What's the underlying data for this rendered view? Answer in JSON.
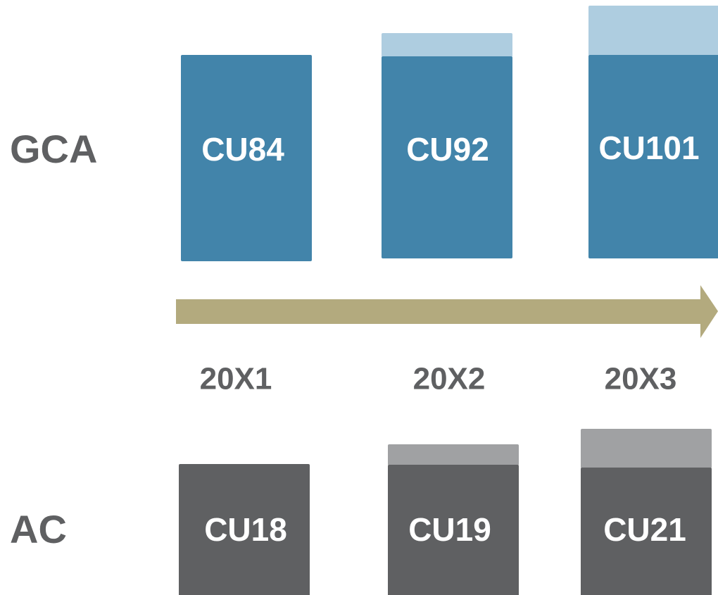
{
  "rows": [
    {
      "label": "GCA",
      "boxes": [
        "CU84",
        "CU92",
        "CU101"
      ]
    },
    {
      "label": "AC",
      "boxes": [
        "CU18",
        "CU19",
        "CU21"
      ]
    }
  ],
  "years": [
    "20X1",
    "20X2",
    "20X3"
  ]
}
